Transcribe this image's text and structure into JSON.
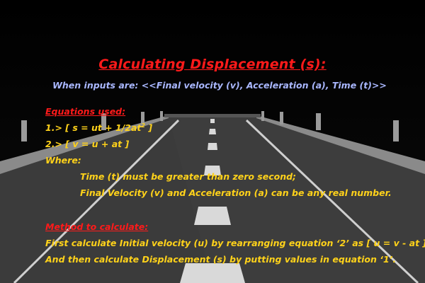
{
  "title": "Calculating Displacement (s):",
  "subtitle": "When inputs are: <<Final velocity (v), Acceleration (a), Time (t)>>",
  "equations_heading": "Equations used:",
  "equation1": {
    "prefix": "1.> [ s = ut + 1/2at",
    "sup": "2",
    "suffix": " ]"
  },
  "equation2": "2.> [ v = u + at ]",
  "where_label": "Where:",
  "conditions": [
    "Time (t) must be greater than zero second;",
    "Final Velocity (v) and Acceleration (a) can be any real number."
  ],
  "method_heading": "Method to calculate:",
  "method_steps": [
    "First calculate Initial velocity (u) by rearranging equation ‘2’ as [ u = v - at ]",
    "And then calculate Displacement (s) by putting values in equation ‘1’."
  ],
  "colors": {
    "background": "#000000",
    "title": "#ff1a1a",
    "subtitle": "#a9b7ff",
    "body_text": "#ffd21a",
    "road": "#3b3b3b",
    "lane_marking": "#d9d9d9"
  }
}
